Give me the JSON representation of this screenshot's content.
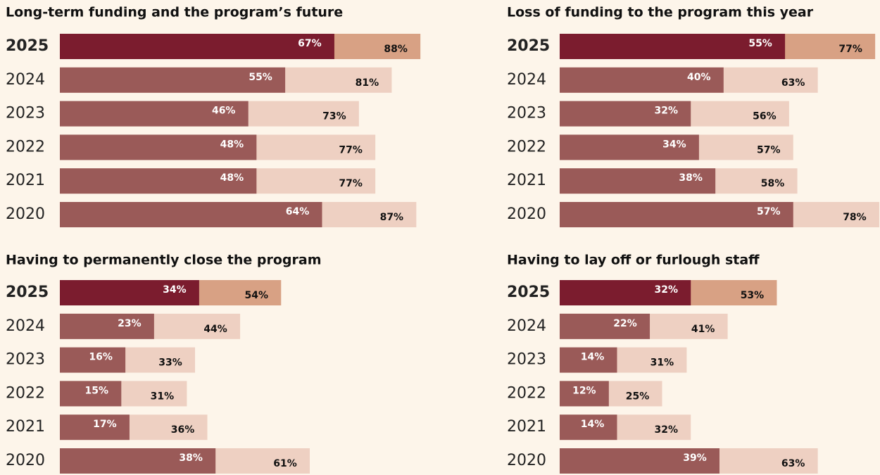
{
  "chart_data": [
    {
      "type": "bar",
      "title": "Long-term funding and the program’s future",
      "categories": [
        "2025",
        "2024",
        "2023",
        "2022",
        "2021",
        "2020"
      ],
      "highlight": [
        true,
        false,
        false,
        false,
        false,
        false
      ],
      "xlim": [
        0,
        100
      ],
      "series": [
        {
          "color": "#9a5a58",
          "highlight_color": "#7b1c2e",
          "values": [
            67,
            55,
            46,
            48,
            48,
            64
          ],
          "value_labels": [
            "67%",
            "55%",
            "46%",
            "48%",
            "48%",
            "64%"
          ]
        },
        {
          "color": "#eed0c2",
          "highlight_color": "#d8a184",
          "values": [
            88,
            81,
            73,
            77,
            77,
            87
          ],
          "value_labels": [
            "88%",
            "81%",
            "73%",
            "77%",
            "77%",
            "87%"
          ]
        }
      ]
    },
    {
      "type": "bar",
      "title": "Loss of funding to the program this year",
      "categories": [
        "2025",
        "2024",
        "2023",
        "2022",
        "2021",
        "2020"
      ],
      "highlight": [
        true,
        false,
        false,
        false,
        false,
        false
      ],
      "xlim": [
        0,
        100
      ],
      "series": [
        {
          "color": "#9a5a58",
          "highlight_color": "#7b1c2e",
          "values": [
            55,
            40,
            32,
            34,
            38,
            57
          ],
          "value_labels": [
            "55%",
            "40%",
            "32%",
            "34%",
            "38%",
            "57%"
          ]
        },
        {
          "color": "#eed0c2",
          "highlight_color": "#d8a184",
          "values": [
            77,
            63,
            56,
            57,
            58,
            78
          ],
          "value_labels": [
            "77%",
            "63%",
            "56%",
            "57%",
            "58%",
            "78%"
          ]
        }
      ]
    },
    {
      "type": "bar",
      "title": "Having to permanently close the program",
      "categories": [
        "2025",
        "2024",
        "2023",
        "2022",
        "2021",
        "2020"
      ],
      "highlight": [
        true,
        false,
        false,
        false,
        false,
        false
      ],
      "xlim": [
        0,
        100
      ],
      "series": [
        {
          "color": "#9a5a58",
          "highlight_color": "#7b1c2e",
          "values": [
            34,
            23,
            16,
            15,
            17,
            38
          ],
          "value_labels": [
            "34%",
            "23%",
            "16%",
            "15%",
            "17%",
            "38%"
          ]
        },
        {
          "color": "#eed0c2",
          "highlight_color": "#d8a184",
          "values": [
            54,
            44,
            33,
            31,
            36,
            61
          ],
          "value_labels": [
            "54%",
            "44%",
            "33%",
            "31%",
            "36%",
            "61%"
          ]
        }
      ]
    },
    {
      "type": "bar",
      "title": "Having to lay off or furlough staff",
      "categories": [
        "2025",
        "2024",
        "2023",
        "2022",
        "2021",
        "2020"
      ],
      "highlight": [
        true,
        false,
        false,
        false,
        false,
        false
      ],
      "xlim": [
        0,
        100
      ],
      "series": [
        {
          "color": "#9a5a58",
          "highlight_color": "#7b1c2e",
          "values": [
            32,
            22,
            14,
            12,
            14,
            39
          ],
          "value_labels": [
            "32%",
            "22%",
            "14%",
            "12%",
            "14%",
            "39%"
          ]
        },
        {
          "color": "#eed0c2",
          "highlight_color": "#d8a184",
          "values": [
            53,
            41,
            31,
            25,
            32,
            63
          ],
          "value_labels": [
            "53%",
            "41%",
            "31%",
            "25%",
            "32%",
            "63%"
          ]
        }
      ]
    }
  ]
}
